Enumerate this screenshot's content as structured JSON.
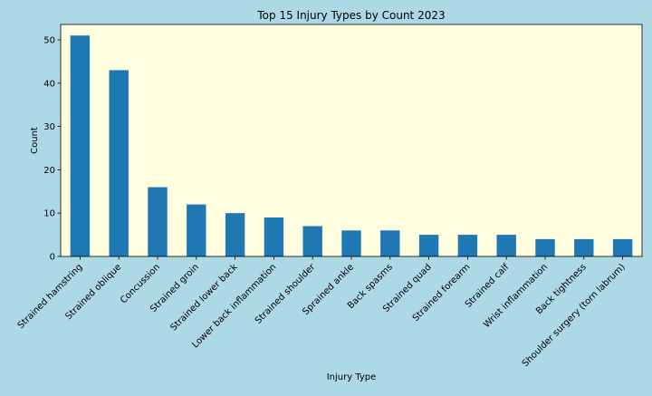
{
  "colors": {
    "figure_background": "#add8e6",
    "plot_background": "#ffffe0",
    "bar": "#1f77b4",
    "axis": "#000000"
  },
  "chart_data": {
    "type": "bar",
    "title": "Top 15 Injury Types by Count 2023",
    "xlabel": "Injury Type",
    "ylabel": "Count",
    "ylim": [
      0,
      53.55
    ],
    "yticks": [
      0,
      10,
      20,
      30,
      40,
      50
    ],
    "grid": false,
    "legend": "none",
    "categories": [
      "Strained hamstring",
      "Strained oblique",
      "Concussion",
      "Strained groin",
      "Strained lower back",
      "Lower back inflammation",
      "Strained shoulder",
      "Sprained ankle",
      "Back spasms",
      "Strained quad",
      "Strained forearm",
      "Strained calf",
      "Wrist inflammation",
      "Back tightness",
      "Shoulder surgery (torn labrum)"
    ],
    "values": [
      51,
      43,
      16,
      12,
      10,
      9,
      7,
      6,
      6,
      5,
      5,
      5,
      4,
      4,
      4
    ]
  }
}
